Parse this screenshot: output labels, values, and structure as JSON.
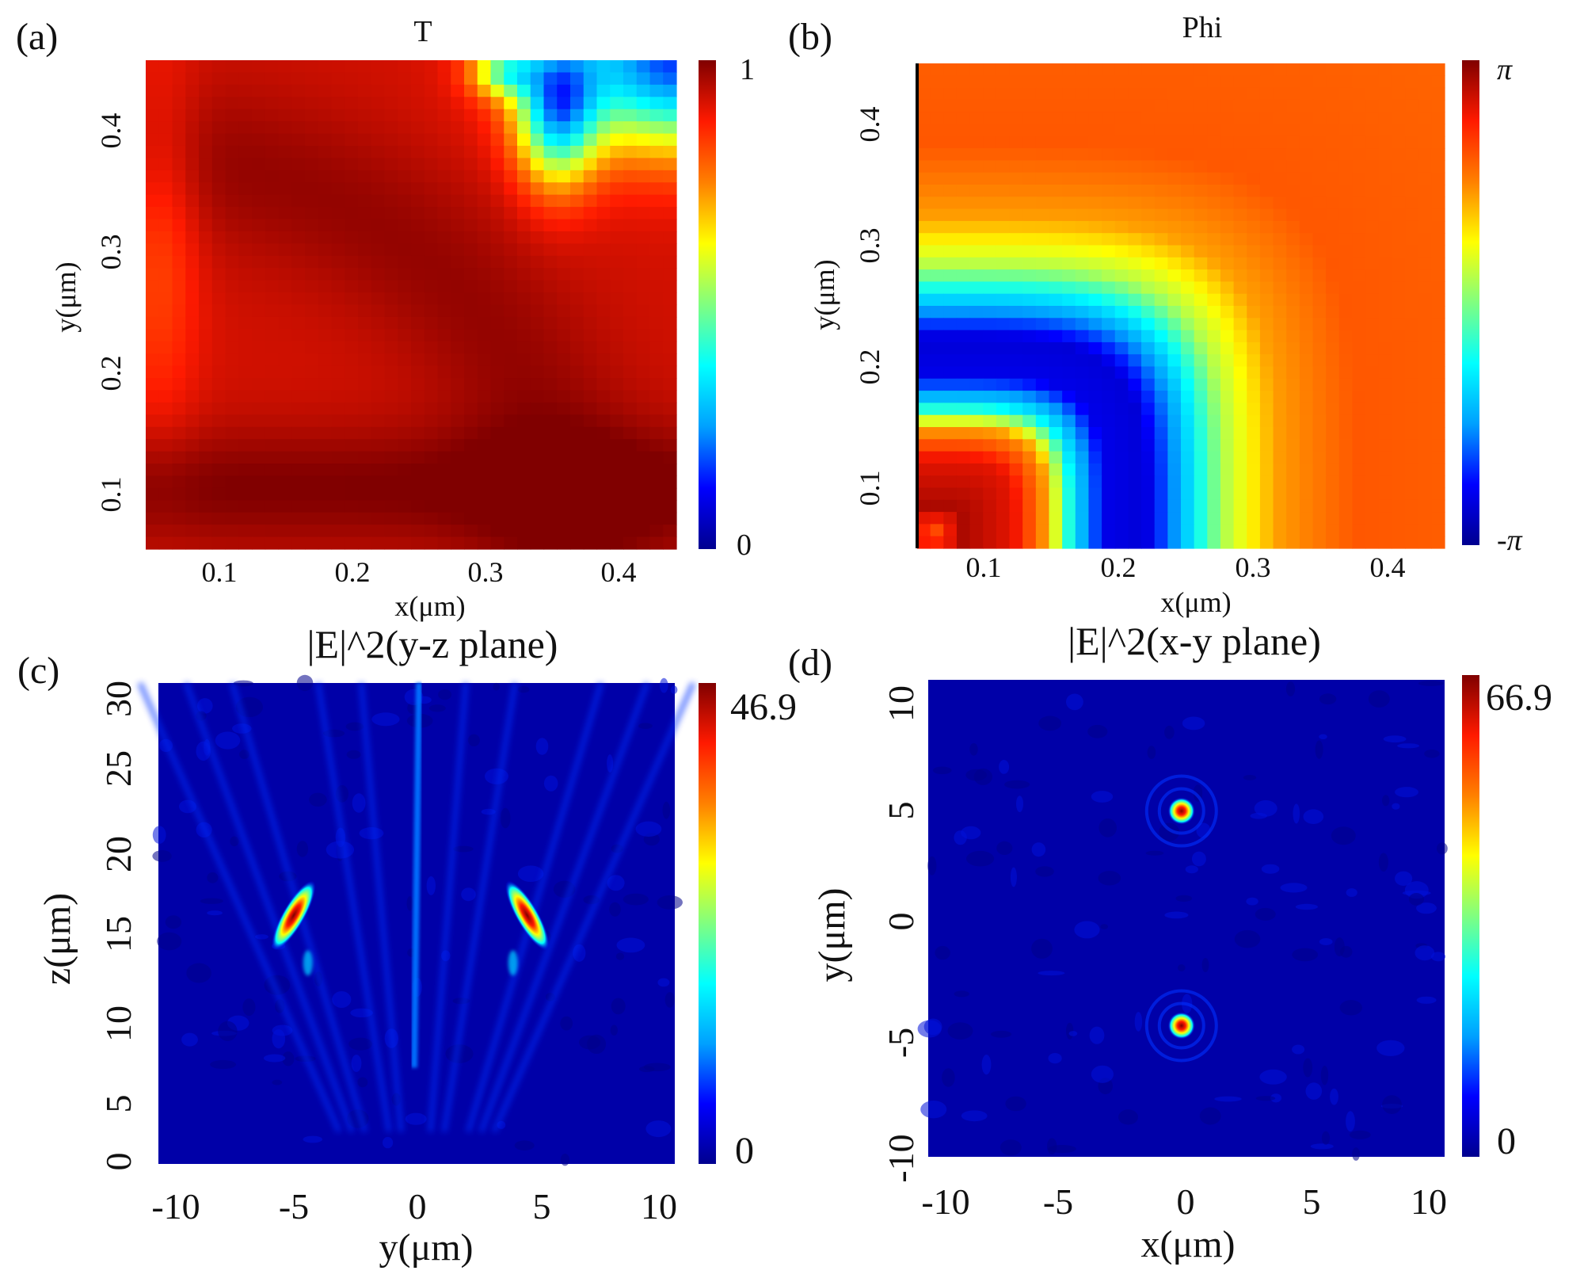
{
  "colormap": [
    "#00008f",
    "#0000ff",
    "#00a0ff",
    "#00ffff",
    "#80ff80",
    "#ffff00",
    "#ff8000",
    "#ff1a00",
    "#800000"
  ],
  "chart_data": [
    {
      "type": "heatmap",
      "panel": "(a)",
      "title": "T",
      "xlabel": "x(μm)",
      "ylabel": "y(μm)",
      "xlim": [
        0.05,
        0.45
      ],
      "ylim": [
        0.05,
        0.45
      ],
      "xticks": [
        "0.1",
        "0.2",
        "0.3",
        "0.4"
      ],
      "yticks": [
        "0.1",
        "0.2",
        "0.3",
        "0.4"
      ],
      "xtick_values": [
        0.1,
        0.2,
        0.3,
        0.4
      ],
      "ytick_values": [
        0.1,
        0.2,
        0.3,
        0.4
      ],
      "colorbar": {
        "min": 0,
        "max": 1,
        "labels": [
          "1",
          "0"
        ]
      },
      "grid": [
        40,
        40
      ],
      "description_of_values": "transmission mostly 0.85-1.0; low (~0.2-0.5) region at upper right for x>0.3, y>0.35"
    },
    {
      "type": "heatmap",
      "panel": "(b)",
      "title": "Phi",
      "xlabel": "x(μm)",
      "ylabel": "y(μm)",
      "xlim": [
        0.05,
        0.45
      ],
      "ylim": [
        0.05,
        0.45
      ],
      "xticks": [
        "0.1",
        "0.2",
        "0.3",
        "0.4"
      ],
      "yticks": [
        "0.1",
        "0.2",
        "0.3",
        "0.4"
      ],
      "xtick_values": [
        0.1,
        0.2,
        0.3,
        0.4
      ],
      "ytick_values": [
        0.1,
        0.2,
        0.3,
        0.4
      ],
      "colorbar": {
        "min": "-π",
        "max": "π",
        "labels": [
          "π",
          "-π"
        ]
      },
      "grid": [
        40,
        40
      ]
    },
    {
      "type": "heatmap",
      "panel": "(c)",
      "title": "|E|^2(y-z plane)",
      "xlabel": "y(μm)",
      "ylabel": "z(μm)",
      "xlim": [
        -10.5,
        10.5
      ],
      "ylim": [
        0,
        30
      ],
      "xticks": [
        "-10",
        "-5",
        "0",
        "5",
        "10"
      ],
      "yticks": [
        "0",
        "5",
        "10",
        "15",
        "20",
        "25",
        "30"
      ],
      "xtick_values": [
        -10,
        -5,
        0,
        5,
        10
      ],
      "ytick_values": [
        0,
        5,
        10,
        15,
        20,
        25,
        30
      ],
      "colorbar": {
        "min": 0,
        "max": 46.9,
        "labels": [
          "46.9",
          "0"
        ]
      },
      "hotspots": [
        {
          "y": -5,
          "z": 15.5,
          "value": 46.9
        },
        {
          "y": 4.5,
          "z": 15.5,
          "value": 46.9
        }
      ]
    },
    {
      "type": "heatmap",
      "panel": "(d)",
      "title": "|E|^2(x-y plane)",
      "xlabel": "x(μm)",
      "ylabel": "y(μm)",
      "xlim": [
        -10.5,
        10.5
      ],
      "ylim": [
        -10,
        10
      ],
      "xticks": [
        "-10",
        "-5",
        "0",
        "5",
        "10"
      ],
      "yticks": [
        "-10",
        "-5",
        "0",
        "5",
        "10"
      ],
      "xtick_values": [
        -10,
        -5,
        0,
        5,
        10
      ],
      "ytick_values": [
        -10,
        -5,
        0,
        5,
        10
      ],
      "colorbar": {
        "min": 0,
        "max": 66.9,
        "labels": [
          "66.9",
          "0"
        ]
      },
      "hotspots": [
        {
          "x": -0.2,
          "y": 4.5,
          "value": 66.9
        },
        {
          "x": -0.2,
          "y": -4.5,
          "value": 66.9
        }
      ]
    }
  ]
}
